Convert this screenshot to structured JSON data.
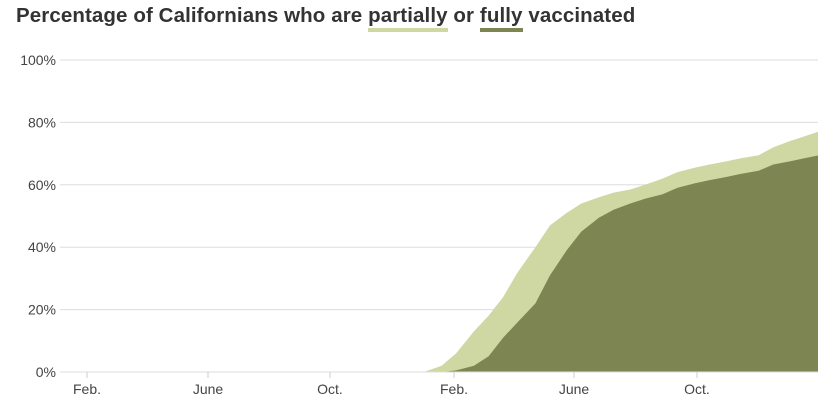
{
  "title": {
    "prefix": "Percentage of Californians who are ",
    "partial_word": "partially",
    "middle": " or ",
    "fully_word": "fully",
    "suffix": " vaccinated"
  },
  "colors": {
    "partial": "#cfd8a3",
    "fully": "#7d8652",
    "grid": "#dddddd",
    "text": "#333333"
  },
  "chart_data": {
    "type": "area",
    "title": "Percentage of Californians who are partially or fully vaccinated",
    "xlabel": "",
    "ylabel": "",
    "ylim": [
      0,
      100
    ],
    "y_ticks": [
      "0%",
      "20%",
      "40%",
      "60%",
      "80%",
      "100%"
    ],
    "x_ticks": [
      "Feb.",
      "June",
      "Oct.",
      "Feb.",
      "June",
      "Oct."
    ],
    "x_range": [
      "2020-01",
      "2021-12"
    ],
    "grid": true,
    "legend": "inline in title (underlined words)",
    "x": [
      "2020-01-01",
      "2020-12-15",
      "2021-01-01",
      "2021-01-15",
      "2021-02-01",
      "2021-02-15",
      "2021-03-01",
      "2021-03-15",
      "2021-04-01",
      "2021-04-15",
      "2021-05-01",
      "2021-05-15",
      "2021-06-01",
      "2021-06-15",
      "2021-07-01",
      "2021-07-15",
      "2021-08-01",
      "2021-08-15",
      "2021-09-01",
      "2021-09-15",
      "2021-10-01",
      "2021-10-15",
      "2021-11-01",
      "2021-11-15",
      "2021-12-01",
      "2021-12-15",
      "2021-12-28"
    ],
    "series": [
      {
        "name": "Partially vaccinated",
        "values": [
          0,
          0,
          2,
          6,
          13,
          18,
          24,
          32,
          40,
          47,
          51,
          54,
          56,
          57.5,
          58.5,
          60,
          62,
          64,
          65.5,
          66.5,
          67.5,
          68.5,
          69.5,
          72,
          74,
          75.5,
          77
        ]
      },
      {
        "name": "Fully vaccinated",
        "values": [
          0,
          0,
          0,
          0.5,
          2,
          5,
          11,
          16,
          22,
          31,
          39,
          45,
          49.5,
          52,
          54,
          55.5,
          57,
          59,
          60.5,
          61.5,
          62.5,
          63.5,
          64.5,
          66.5,
          67.5,
          68.5,
          69.4
        ]
      }
    ]
  }
}
